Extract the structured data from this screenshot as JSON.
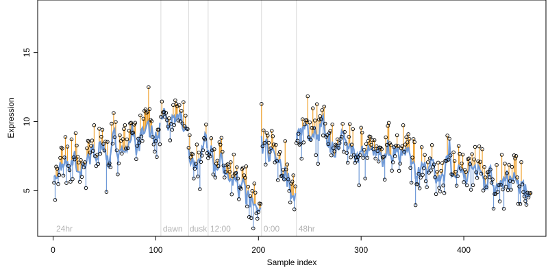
{
  "chart_data": {
    "type": "scatter",
    "title": "",
    "xlabel": "Sample index",
    "ylabel": "Expression",
    "xlim": [
      -15,
      480
    ],
    "ylim": [
      1.7,
      18.8
    ],
    "x_ticks": [
      0,
      100,
      200,
      300,
      400
    ],
    "y_ticks": [
      5,
      10,
      15
    ],
    "grid": false,
    "legend": "none",
    "phase_boundaries": [
      105,
      132,
      151,
      203,
      237
    ],
    "phase_labels": [
      {
        "x": 3,
        "label": "24hr"
      },
      {
        "x": 107,
        "label": "dawn"
      },
      {
        "x": 133,
        "label": "dusk"
      },
      {
        "x": 153,
        "label": "12:00"
      },
      {
        "x": 205,
        "label": "0:00"
      },
      {
        "x": 239,
        "label": "48hr"
      }
    ],
    "colors": {
      "observed_points": "#000000",
      "fitted_line": "#6f9ad8",
      "residual_positive": "#f0a22e",
      "residual_negative": "#6f9ad8",
      "phase_line": "#d9d9d9",
      "phase_label": "#b3b3b3"
    },
    "segments": [
      {
        "x_start": 1,
        "x_end": 104,
        "trend_start": 6.6,
        "trend_end": 9.0,
        "seed": 11
      },
      {
        "x_start": 105,
        "x_end": 131,
        "trend_start": 9.5,
        "trend_end": 10.0,
        "seed": 23
      },
      {
        "x_start": 132,
        "x_end": 150,
        "trend_start": 7.5,
        "trend_end": 8.0,
        "seed": 37
      },
      {
        "x_start": 151,
        "x_end": 202,
        "trend_start": 8.2,
        "trend_end": 3.8,
        "seed": 41
      },
      {
        "x_start": 203,
        "x_end": 236,
        "trend_start": 8.5,
        "trend_end": 4.8,
        "seed": 53
      },
      {
        "x_start": 237,
        "x_end": 465,
        "trend_start": 9.2,
        "trend_end": 5.0,
        "seed": 67
      }
    ],
    "noise": {
      "fitted_sd": 0.45,
      "residual_sd": 0.9
    }
  }
}
